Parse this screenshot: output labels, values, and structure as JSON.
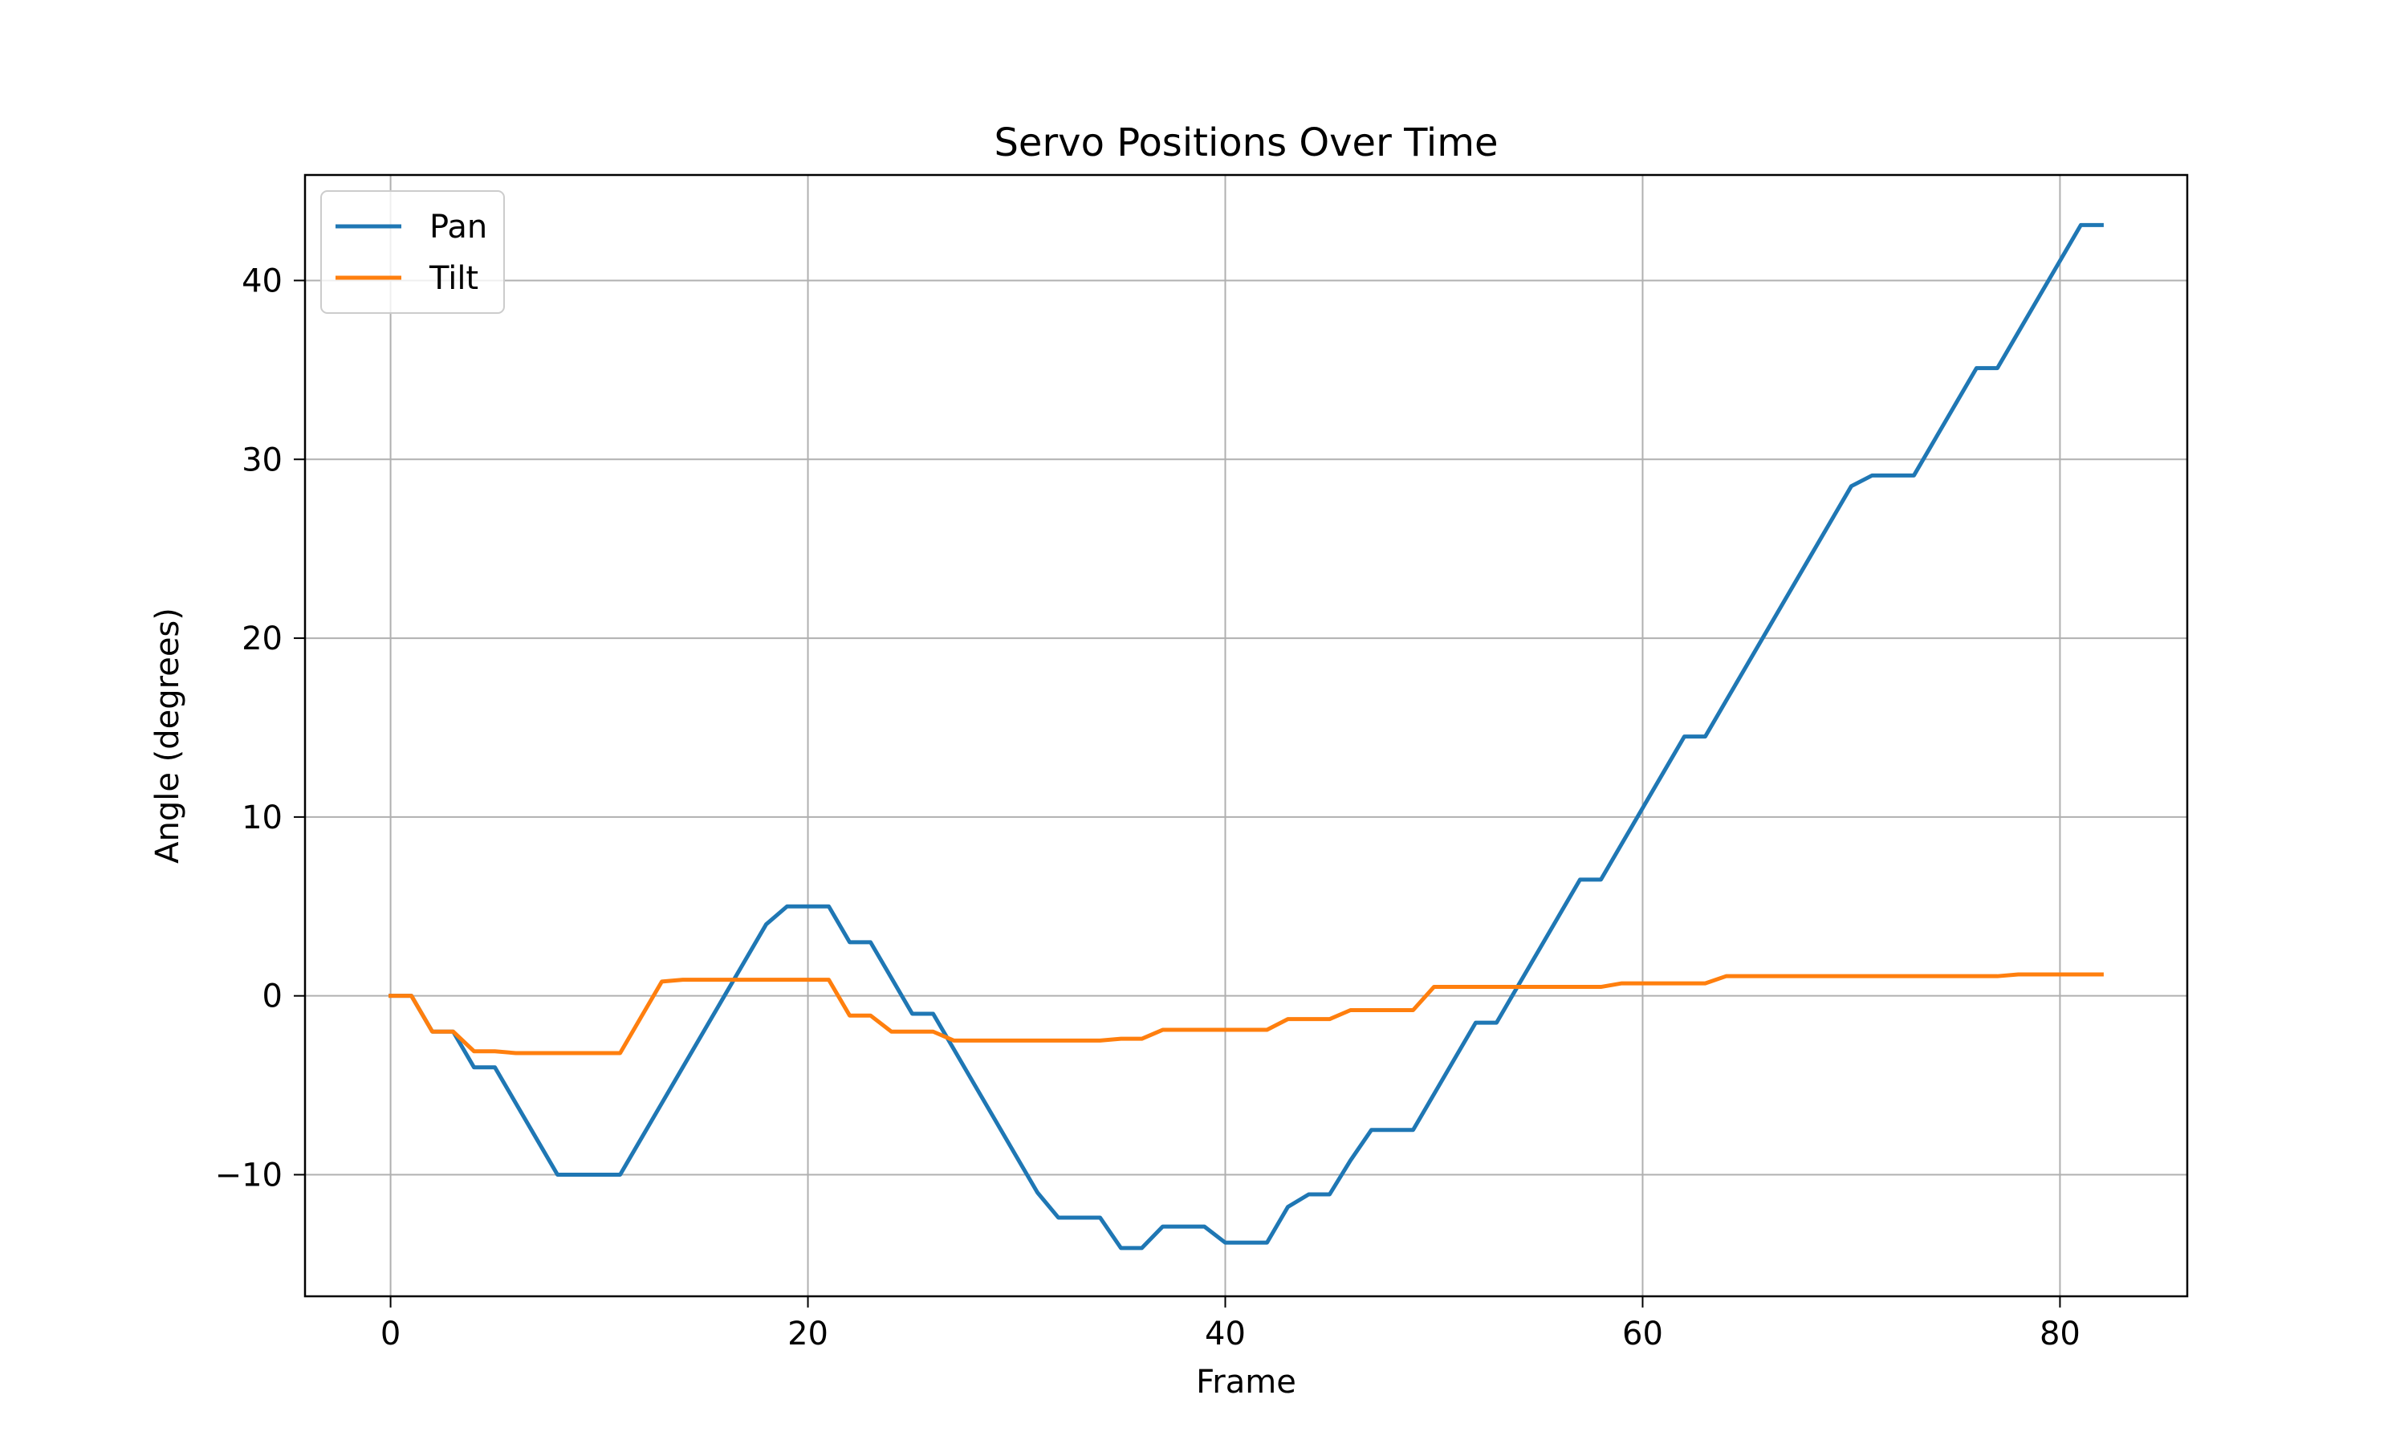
{
  "chart_data": {
    "type": "line",
    "title": "Servo Positions Over Time",
    "xlabel": "Frame",
    "ylabel": "Angle (degrees)",
    "xlim": [
      -4.1,
      86.1
    ],
    "ylim": [
      -16.8,
      45.9
    ],
    "x_ticks": [
      0,
      20,
      40,
      60,
      80
    ],
    "y_ticks": [
      -10,
      0,
      10,
      20,
      30,
      40
    ],
    "y_tick_labels": [
      "−10",
      "0",
      "10",
      "20",
      "30",
      "40"
    ],
    "grid": true,
    "legend_position": "upper-left",
    "x": [
      0,
      1,
      2,
      3,
      4,
      5,
      6,
      7,
      8,
      9,
      10,
      11,
      12,
      13,
      14,
      15,
      16,
      17,
      18,
      19,
      20,
      21,
      22,
      23,
      24,
      25,
      26,
      27,
      28,
      29,
      30,
      31,
      32,
      33,
      34,
      35,
      36,
      37,
      38,
      39,
      40,
      41,
      42,
      43,
      44,
      45,
      46,
      47,
      48,
      49,
      50,
      51,
      52,
      53,
      54,
      55,
      56,
      57,
      58,
      59,
      60,
      61,
      62,
      63,
      64,
      65,
      66,
      67,
      68,
      69,
      70,
      71,
      72,
      73,
      74,
      75,
      76,
      77,
      78,
      79,
      80,
      81,
      82
    ],
    "series": [
      {
        "name": "Pan",
        "color": "#1f77b4",
        "values": [
          0,
          0,
          -2,
          -2,
          -4,
          -4,
          -6,
          -8,
          -10,
          -10,
          -10,
          -10,
          -8,
          -6,
          -4,
          -2,
          0,
          2,
          4,
          5,
          5,
          5,
          3,
          3,
          1,
          -1,
          -1,
          -3,
          -5,
          -7,
          -9,
          -11,
          -12.4,
          -12.4,
          -12.4,
          -14.1,
          -14.1,
          -12.9,
          -12.9,
          -12.9,
          -13.8,
          -13.8,
          -13.8,
          -11.8,
          -11.1,
          -11.1,
          -9.2,
          -7.5,
          -7.5,
          -7.5,
          -5.5,
          -3.5,
          -1.5,
          -1.5,
          0.5,
          2.5,
          4.5,
          6.5,
          6.5,
          8.5,
          10.5,
          12.5,
          14.5,
          14.5,
          16.5,
          18.5,
          20.5,
          22.5,
          24.5,
          26.5,
          28.5,
          29.1,
          29.1,
          29.1,
          31.1,
          33.1,
          35.1,
          35.1,
          37.1,
          39.1,
          41.1,
          43.1,
          43.1
        ]
      },
      {
        "name": "Tilt",
        "color": "#ff7f0e",
        "values": [
          0,
          0,
          -2,
          -2,
          -3.1,
          -3.1,
          -3.2,
          -3.2,
          -3.2,
          -3.2,
          -3.2,
          -3.2,
          -1.2,
          0.8,
          0.9,
          0.9,
          0.9,
          0.9,
          0.9,
          0.9,
          0.9,
          0.9,
          -1.1,
          -1.1,
          -2,
          -2,
          -2,
          -2.5,
          -2.5,
          -2.5,
          -2.5,
          -2.5,
          -2.5,
          -2.5,
          -2.5,
          -2.4,
          -2.4,
          -1.9,
          -1.9,
          -1.9,
          -1.9,
          -1.9,
          -1.9,
          -1.3,
          -1.3,
          -1.3,
          -0.8,
          -0.8,
          -0.8,
          -0.8,
          0.5,
          0.5,
          0.5,
          0.5,
          0.5,
          0.5,
          0.5,
          0.5,
          0.5,
          0.7,
          0.7,
          0.7,
          0.7,
          0.7,
          1.1,
          1.1,
          1.1,
          1.1,
          1.1,
          1.1,
          1.1,
          1.1,
          1.1,
          1.1,
          1.1,
          1.1,
          1.1,
          1.1,
          1.2,
          1.2,
          1.2,
          1.2,
          1.2
        ]
      }
    ]
  }
}
